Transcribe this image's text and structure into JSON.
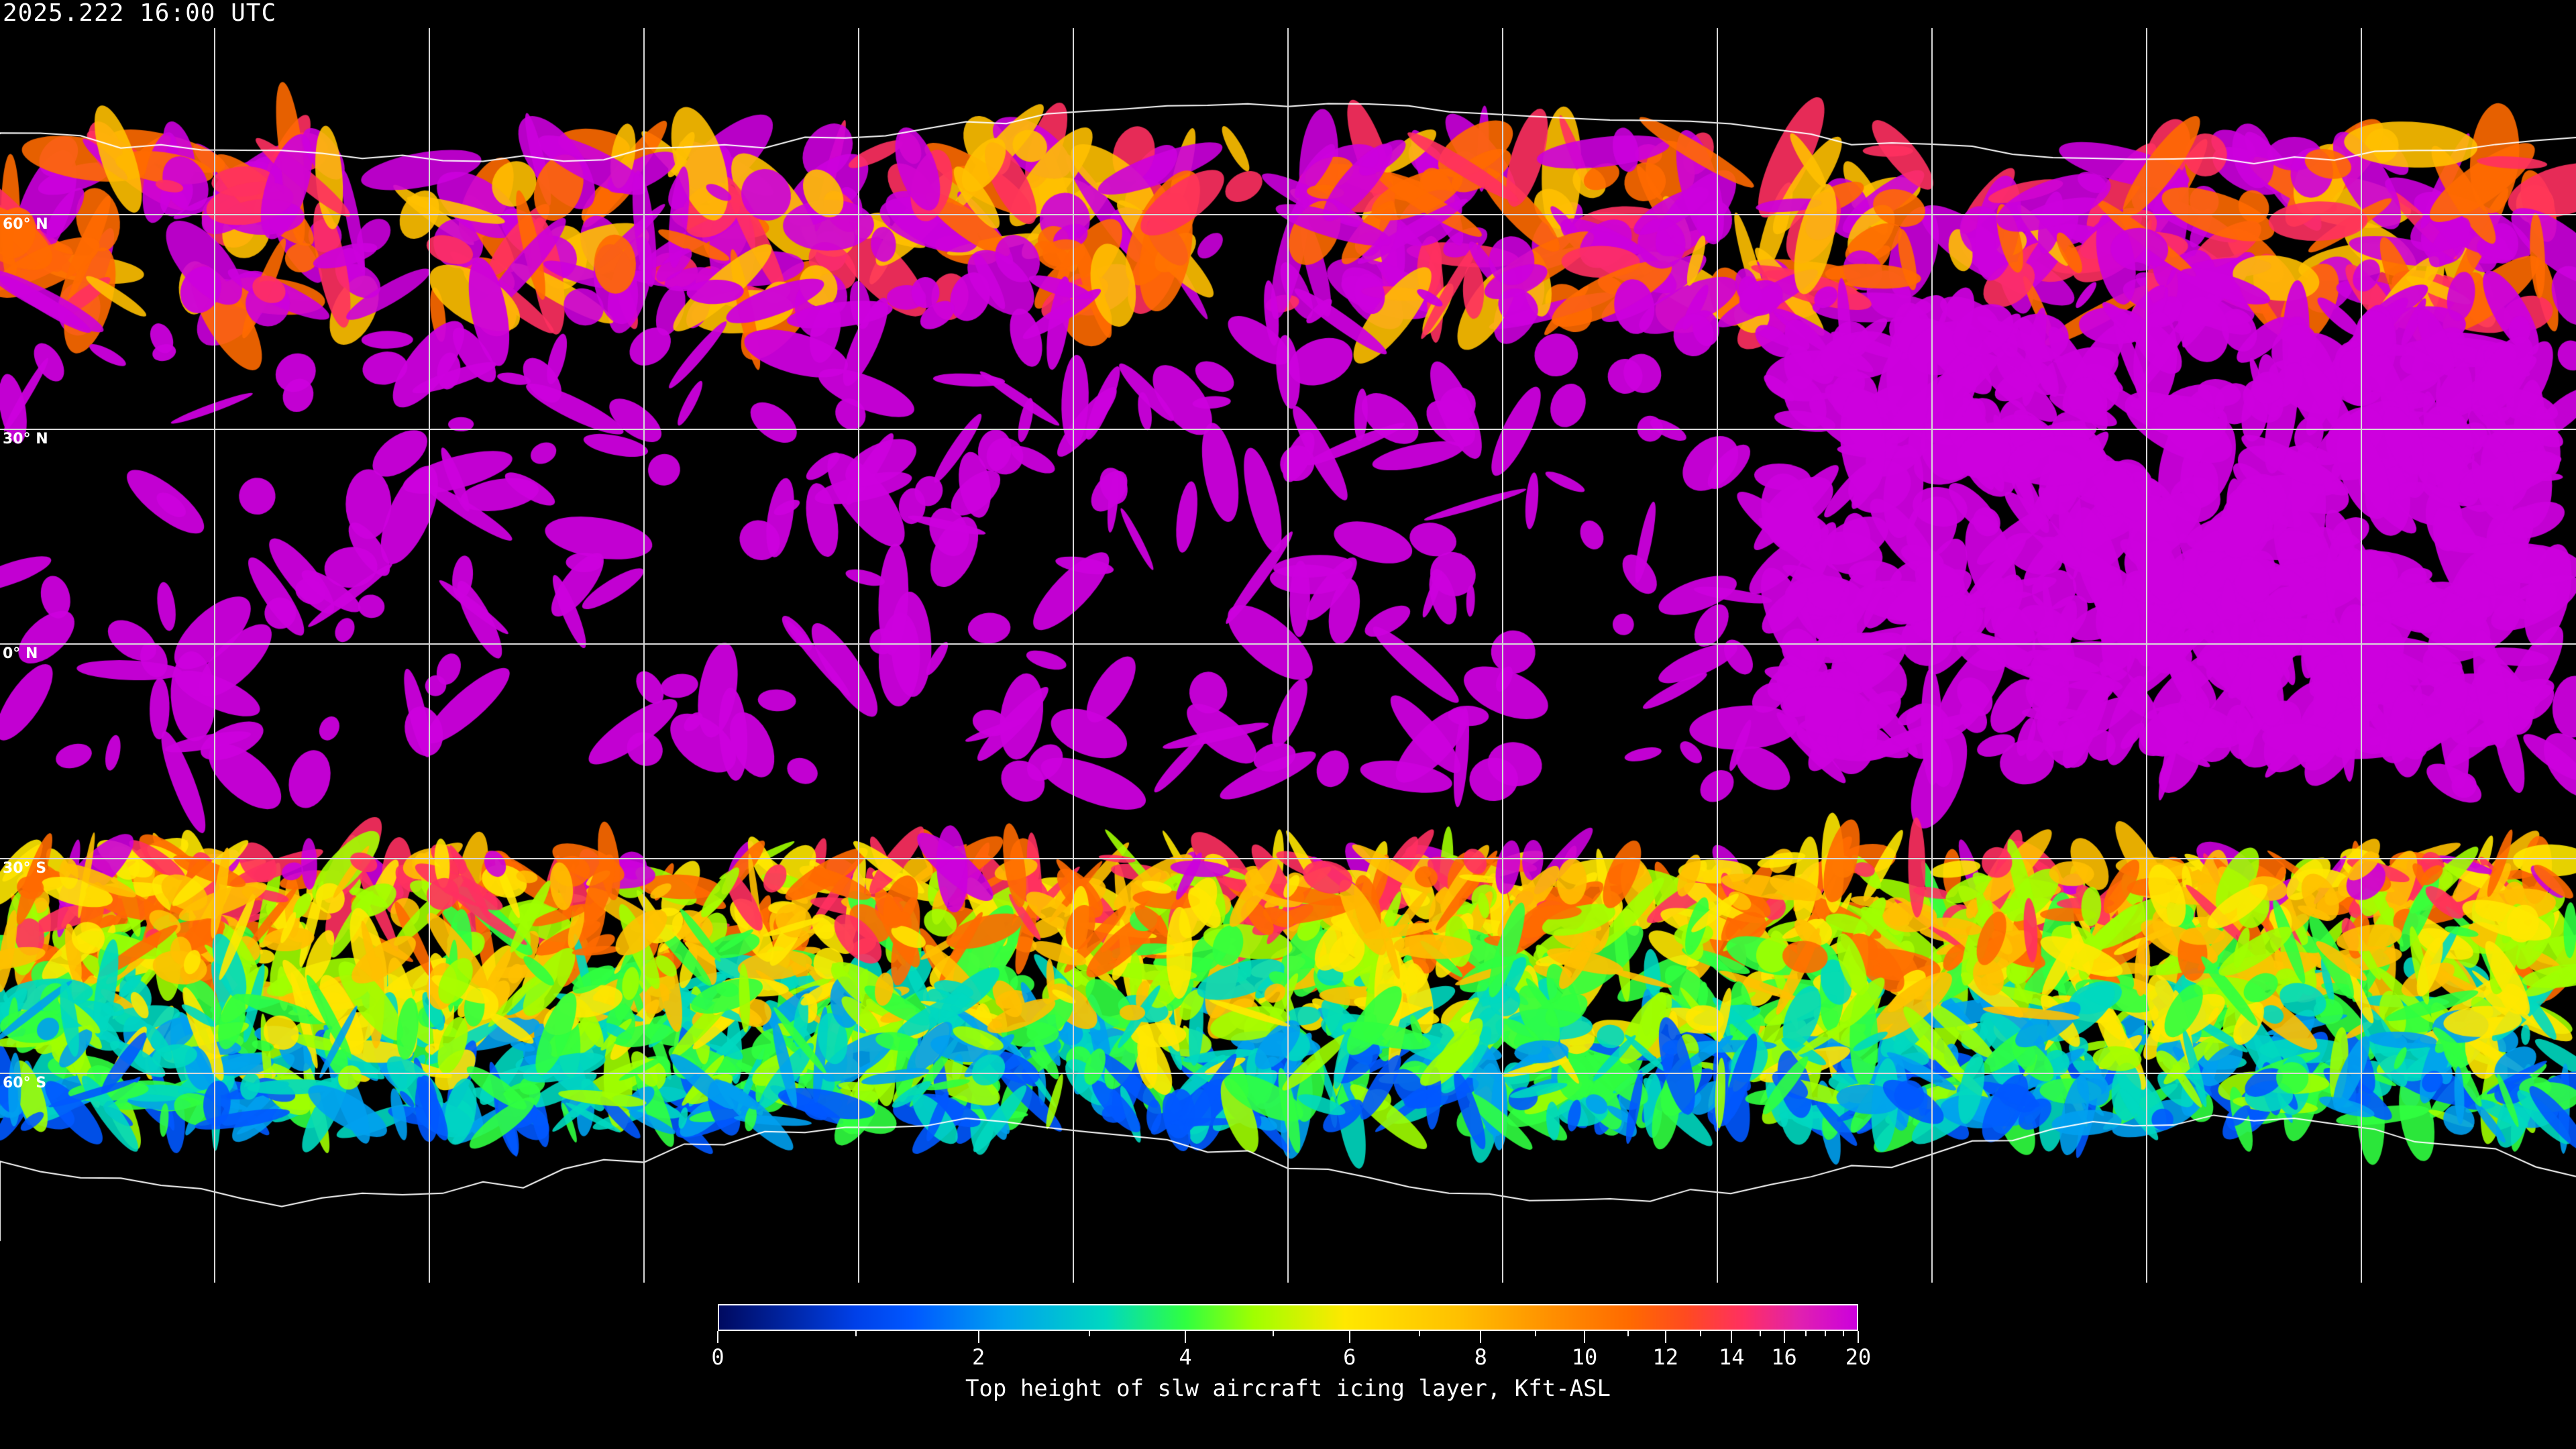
{
  "timestamp": "2025.222 16:00 UTC",
  "map": {
    "projection": "equirectangular",
    "background_color": "#000000",
    "coastline_color": "#ffffff",
    "gridline_color": "#d8d8d8",
    "longitude_grid_deg": [
      -150,
      -120,
      -90,
      -60,
      -30,
      0,
      30,
      60,
      90,
      120,
      150
    ],
    "latitude_labels": [
      {
        "lat": 60,
        "text": "60° N"
      },
      {
        "lat": 30,
        "text": "30° N"
      },
      {
        "lat": 0,
        "text": "0° N"
      },
      {
        "lat": -30,
        "text": "30° S"
      },
      {
        "lat": -60,
        "text": "60° S"
      }
    ]
  },
  "colorbar": {
    "title": "Top height of slw aircraft icing layer, Kft-ASL",
    "min": 0,
    "max": 20,
    "major_ticks": [
      "0",
      "2",
      "4",
      "6",
      "8",
      "10",
      "12",
      "14",
      "16",
      "20"
    ],
    "minor_ticks": [
      1,
      3,
      5,
      7,
      9,
      11,
      13,
      15,
      17,
      18,
      19
    ],
    "colors": [
      "#000a60",
      "#0058ff",
      "#00a0f0",
      "#30ff40",
      "#ffe800",
      "#ff9000",
      "#ff4a20",
      "#ff3060",
      "#cc00dd"
    ]
  }
}
